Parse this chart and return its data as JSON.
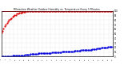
{
  "title": "Milwaukee Weather Outdoor Humidity vs. Temperature Every 5 Minutes",
  "bg_color": "#ffffff",
  "grid_color": "#bbbbbb",
  "humidity_color": "#dd0000",
  "temp_color": "#0000dd",
  "red_line_color": "#dd0000",
  "humidity_x": [
    0,
    1,
    2,
    3,
    4,
    5,
    6,
    7,
    8,
    9,
    10,
    11,
    12,
    13,
    14,
    15,
    16,
    17,
    18,
    19,
    20,
    21,
    22,
    23,
    24,
    25,
    26,
    27,
    28,
    29,
    30,
    31,
    32,
    33,
    34,
    35,
    36,
    37,
    38,
    39,
    40,
    41,
    42,
    43,
    44,
    45,
    46,
    47,
    48,
    49,
    50,
    51,
    52,
    53,
    54,
    55,
    56,
    57,
    58,
    59,
    60,
    61,
    62,
    63,
    64,
    65,
    66,
    67,
    68,
    69,
    70,
    71,
    72,
    73,
    74,
    75,
    76,
    77,
    78,
    79,
    80,
    81,
    82,
    83,
    84,
    85,
    86,
    87,
    88,
    89,
    90,
    91,
    92,
    93,
    94,
    95,
    96,
    97,
    98,
    99
  ],
  "humidity_y": [
    52,
    57,
    62,
    67,
    71,
    74,
    77,
    80,
    83,
    85,
    87,
    89,
    91,
    92,
    94,
    95,
    96,
    97,
    97,
    98,
    98,
    98,
    99,
    99,
    99,
    99,
    99,
    99,
    99,
    99,
    99,
    99,
    99,
    99,
    99,
    99,
    99,
    99,
    99,
    99,
    99,
    99,
    99,
    99,
    99,
    99,
    99,
    99,
    99,
    99,
    99,
    99,
    99,
    99,
    99,
    99,
    99,
    99,
    99,
    99,
    99,
    99,
    99,
    99,
    99,
    99,
    99,
    99,
    99,
    99,
    99,
    99,
    99,
    99,
    99,
    99,
    99,
    99,
    99,
    99,
    99,
    99,
    99,
    99,
    99,
    99,
    99,
    99,
    99,
    99,
    99,
    99,
    99,
    99,
    99,
    99,
    99,
    99,
    99,
    99
  ],
  "temp_x": [
    0,
    1,
    2,
    3,
    4,
    5,
    6,
    7,
    8,
    9,
    10,
    11,
    12,
    13,
    14,
    15,
    16,
    17,
    18,
    19,
    20,
    21,
    22,
    23,
    24,
    25,
    26,
    27,
    28,
    29,
    30,
    31,
    32,
    33,
    34,
    35,
    36,
    37,
    38,
    39,
    40,
    41,
    42,
    43,
    44,
    45,
    46,
    47,
    48,
    49,
    50,
    51,
    52,
    53,
    54,
    55,
    56,
    57,
    58,
    59,
    60,
    61,
    62,
    63,
    64,
    65,
    66,
    67,
    68,
    69,
    70,
    71,
    72,
    73,
    74,
    75,
    76,
    77,
    78,
    79,
    80,
    81,
    82,
    83,
    84,
    85,
    86,
    87,
    88,
    89,
    90,
    91,
    92,
    93,
    94,
    95,
    96,
    97,
    98,
    99
  ],
  "temp_y": [
    20,
    20,
    20,
    20,
    20,
    20,
    20,
    20,
    20,
    20,
    21,
    21,
    21,
    21,
    22,
    22,
    22,
    22,
    22,
    22,
    22,
    23,
    23,
    23,
    24,
    24,
    25,
    25,
    25,
    26,
    26,
    27,
    27,
    28,
    28,
    28,
    28,
    28,
    29,
    29,
    29,
    29,
    29,
    29,
    29,
    30,
    30,
    30,
    31,
    31,
    31,
    31,
    31,
    31,
    32,
    32,
    32,
    32,
    33,
    33,
    33,
    34,
    34,
    34,
    34,
    35,
    35,
    35,
    36,
    36,
    36,
    37,
    37,
    37,
    38,
    38,
    38,
    39,
    39,
    39,
    39,
    40,
    40,
    41,
    41,
    42,
    42,
    42,
    43,
    44,
    44,
    45,
    45,
    46,
    46,
    47,
    47,
    47,
    48,
    48
  ],
  "xlim": [
    0,
    99
  ],
  "ylim": [
    0,
    100
  ],
  "right_yticks": [
    0,
    10,
    20,
    30,
    40,
    50,
    60,
    70,
    80,
    90,
    100
  ],
  "right_yticklabels": [
    "0",
    "10",
    "20",
    "30",
    "40",
    "50",
    "60",
    "70",
    "80",
    "90",
    "100"
  ],
  "temp_scale_min": 0,
  "temp_scale_max": 55,
  "temp_display_max": 27,
  "num_xgrid": 28,
  "num_ygrid": 11
}
